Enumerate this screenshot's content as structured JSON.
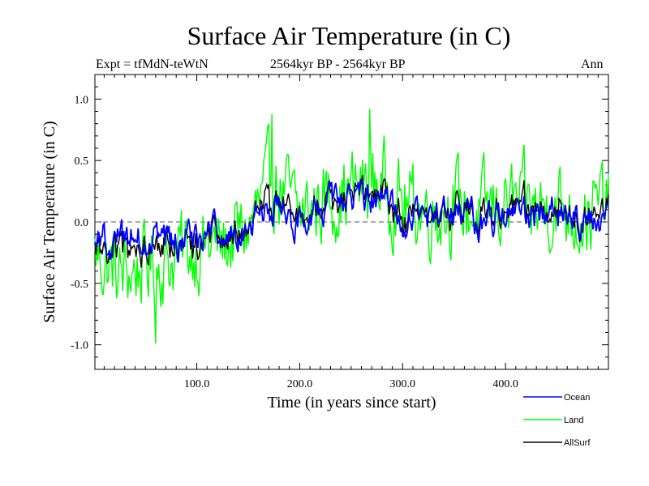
{
  "chart_data": {
    "type": "line",
    "title": "Surface Air Temperature (in C)",
    "subtitle_left": "Expt = tfMdN-teWtN",
    "subtitle_center": "2564kyr BP - 2564kyr BP",
    "subtitle_right": "Ann",
    "xlabel": "Time (in years since start)",
    "ylabel": "Surface Air Temperature (in C)",
    "xlim": [
      1,
      500
    ],
    "ylim": [
      -1.2,
      1.2
    ],
    "xticks": [
      100,
      200,
      300,
      400
    ],
    "xtick_labels": [
      "100.0",
      "200.0",
      "300.0",
      "400.0"
    ],
    "yticks": [
      -1.0,
      -0.5,
      0.0,
      0.5,
      1.0
    ],
    "ytick_labels": [
      "-1.0",
      "-0.5",
      "0.0",
      "0.5",
      "1.0"
    ],
    "reference_line": 0.0,
    "x": [
      1,
      25,
      50,
      75,
      100,
      125,
      150,
      175,
      200,
      225,
      250,
      275,
      300,
      325,
      350,
      375,
      400,
      425,
      450,
      475,
      500
    ],
    "series": [
      {
        "name": "Land",
        "color": "#00ff00",
        "values": [
          -0.25,
          -0.45,
          -0.35,
          -0.3,
          -0.2,
          -0.2,
          -0.05,
          0.35,
          0.05,
          0.2,
          0.25,
          0.35,
          0.15,
          0.1,
          0.15,
          0.05,
          0.15,
          0.1,
          0.15,
          0.05,
          0.15
        ],
        "annotated_extremes": [
          {
            "x": 60,
            "y": -0.99
          },
          {
            "x": 268,
            "y": 0.92
          },
          {
            "x": 173,
            "y": 0.88
          }
        ]
      },
      {
        "name": "Ocean",
        "color": "#0000ff",
        "values": [
          -0.15,
          -0.15,
          -0.1,
          -0.15,
          -0.15,
          -0.1,
          -0.05,
          0.15,
          0.0,
          0.15,
          0.15,
          0.2,
          0.05,
          0.05,
          0.1,
          0.0,
          0.05,
          0.05,
          0.1,
          0.0,
          0.05
        ]
      },
      {
        "name": "AllSurf",
        "color": "#000000",
        "values": [
          -0.2,
          -0.22,
          -0.17,
          -0.2,
          -0.18,
          -0.13,
          -0.05,
          0.2,
          0.02,
          0.17,
          0.18,
          0.25,
          0.08,
          0.07,
          0.12,
          0.02,
          0.08,
          0.07,
          0.12,
          0.02,
          0.08
        ]
      }
    ],
    "legend": {
      "placement": "bottom-right",
      "entries": [
        {
          "label": "Ocean",
          "color": "#0000ff"
        },
        {
          "label": "Land",
          "color": "#00ff00"
        },
        {
          "label": "AllSurf",
          "color": "#000000"
        }
      ]
    }
  }
}
